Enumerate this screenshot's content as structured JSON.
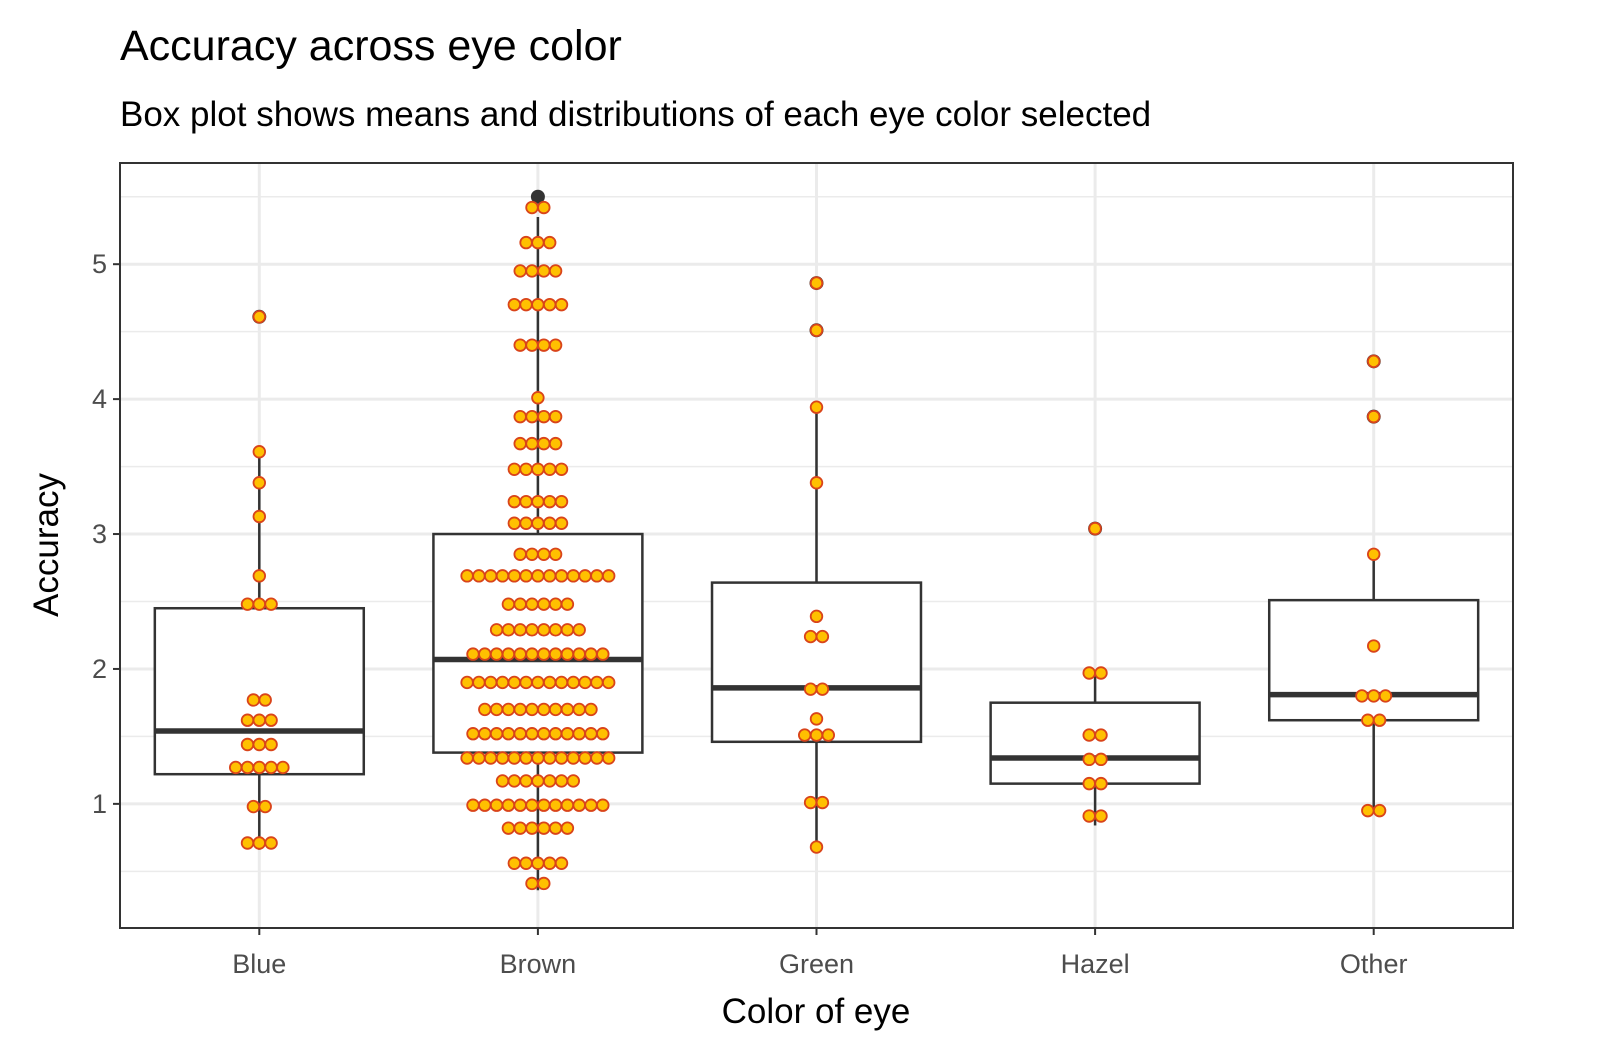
{
  "chart_data": {
    "type": "box",
    "title": "Accuracy across eye color",
    "subtitle": "Box plot shows means and distributions of each eye color selected",
    "xlabel": "Color of eye",
    "ylabel": "Accuracy",
    "categories": [
      "Blue",
      "Brown",
      "Green",
      "Hazel",
      "Other"
    ],
    "ylim": [
      0.08,
      5.75
    ],
    "yticks": [
      1,
      2,
      3,
      4,
      5
    ],
    "grid": true,
    "colors": {
      "dot_fill": "#FFC000",
      "dot_stroke": "#D9441A",
      "box": "#333333",
      "grid": "#EBEBEB"
    },
    "boxes": [
      {
        "category": "Blue",
        "whisker_low": 0.66,
        "q1": 1.22,
        "median": 1.54,
        "q3": 2.45,
        "whisker_high": 3.61,
        "outliers": [
          4.61
        ]
      },
      {
        "category": "Brown",
        "whisker_low": 0.36,
        "q1": 1.38,
        "median": 2.07,
        "q3": 3.0,
        "whisker_high": 5.35,
        "outliers": [
          5.5
        ]
      },
      {
        "category": "Green",
        "whisker_low": 0.68,
        "q1": 1.46,
        "median": 1.86,
        "q3": 2.64,
        "whisker_high": 3.95,
        "outliers": [
          4.86,
          4.51
        ]
      },
      {
        "category": "Hazel",
        "whisker_low": 0.84,
        "q1": 1.15,
        "median": 1.34,
        "q3": 1.75,
        "whisker_high": 1.97,
        "outliers": [
          3.04
        ]
      },
      {
        "category": "Other",
        "whisker_low": 0.95,
        "q1": 1.62,
        "median": 1.81,
        "q3": 2.51,
        "whisker_high": 2.85,
        "outliers": [
          4.28,
          3.87
        ]
      }
    ],
    "dots": {
      "Blue": [
        [
          4.61,
          1
        ],
        [
          3.61,
          1
        ],
        [
          3.38,
          1
        ],
        [
          3.13,
          1
        ],
        [
          2.69,
          1
        ],
        [
          2.48,
          3
        ],
        [
          1.77,
          2
        ],
        [
          1.62,
          3
        ],
        [
          1.44,
          3
        ],
        [
          1.27,
          5
        ],
        [
          0.98,
          2
        ],
        [
          0.71,
          3
        ]
      ],
      "Brown": [
        [
          5.42,
          2
        ],
        [
          5.16,
          3
        ],
        [
          4.95,
          4
        ],
        [
          4.7,
          5
        ],
        [
          4.4,
          4
        ],
        [
          4.01,
          1
        ],
        [
          3.87,
          4
        ],
        [
          3.67,
          4
        ],
        [
          3.48,
          5
        ],
        [
          3.24,
          5
        ],
        [
          3.08,
          5
        ],
        [
          2.85,
          4
        ],
        [
          2.69,
          13
        ],
        [
          2.48,
          6
        ],
        [
          2.29,
          8
        ],
        [
          2.11,
          12
        ],
        [
          1.9,
          13
        ],
        [
          1.7,
          10
        ],
        [
          1.52,
          12
        ],
        [
          1.34,
          13
        ],
        [
          1.17,
          7
        ],
        [
          0.99,
          12
        ],
        [
          0.82,
          6
        ],
        [
          0.56,
          5
        ],
        [
          0.41,
          2
        ]
      ],
      "Green": [
        [
          4.86,
          1
        ],
        [
          4.51,
          1
        ],
        [
          3.94,
          1
        ],
        [
          3.38,
          1
        ],
        [
          2.39,
          1
        ],
        [
          2.24,
          2
        ],
        [
          1.85,
          2
        ],
        [
          1.63,
          1
        ],
        [
          1.51,
          3
        ],
        [
          1.01,
          2
        ],
        [
          0.68,
          1
        ]
      ],
      "Hazel": [
        [
          3.04,
          1
        ],
        [
          1.97,
          2
        ],
        [
          1.51,
          2
        ],
        [
          1.33,
          2
        ],
        [
          1.15,
          2
        ],
        [
          0.91,
          2
        ]
      ],
      "Other": [
        [
          4.28,
          1
        ],
        [
          3.87,
          1
        ],
        [
          2.85,
          1
        ],
        [
          2.17,
          1
        ],
        [
          1.8,
          3
        ],
        [
          1.62,
          2
        ],
        [
          0.95,
          2
        ]
      ]
    }
  }
}
